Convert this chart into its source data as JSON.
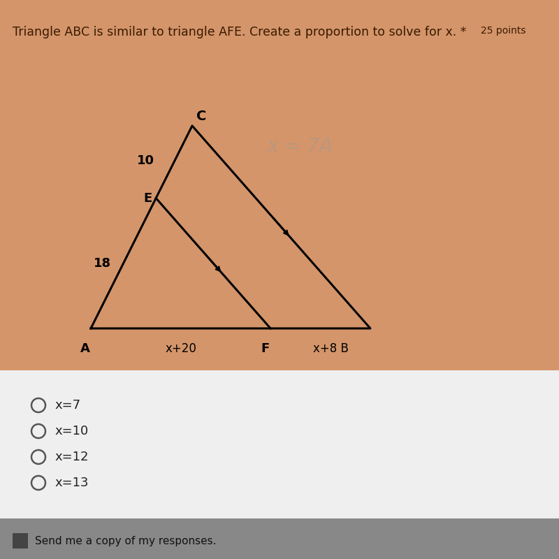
{
  "title": "Triangle ABC is similar to triangle AFE. Create a proportion to solve for x. *  25 points",
  "background_color": "#d4956a",
  "options_bg": "#e8e8e8",
  "triangle_color": "#000000",
  "triangle_linewidth": 2.2,
  "label_A": "A",
  "label_B": "B",
  "label_C": "C",
  "label_E": "E",
  "label_F": "F",
  "label_18": "18",
  "label_10": "10",
  "label_AF": "x+20",
  "label_FB": "x+8 B",
  "options": [
    "x=7",
    "x=10",
    "x=12",
    "x=13"
  ],
  "send_text": "Send me a copy of my responses.",
  "watermark_text": "x = 7A"
}
